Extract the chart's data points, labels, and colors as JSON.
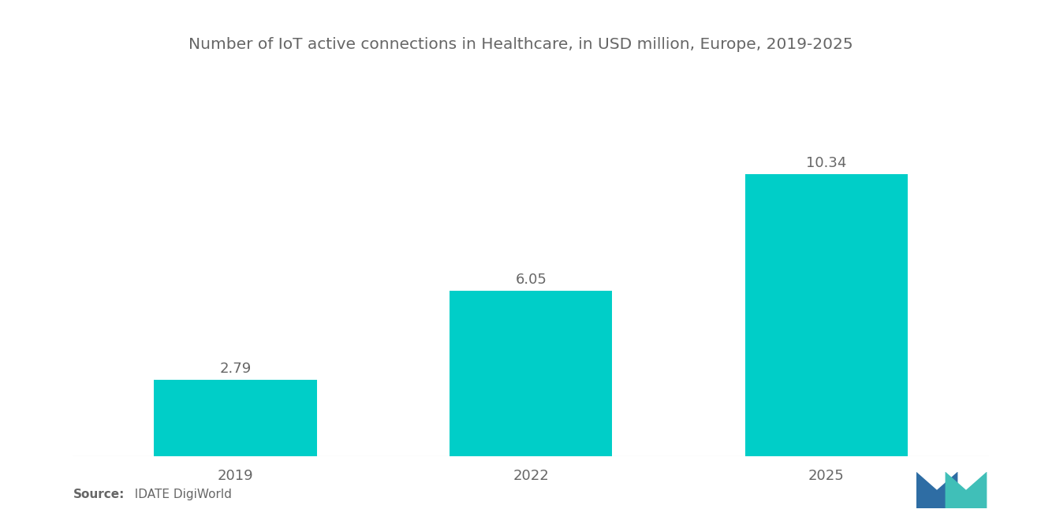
{
  "title": "Number of IoT active connections in Healthcare, in USD million, Europe, 2019-2025",
  "categories": [
    "2019",
    "2022",
    "2025"
  ],
  "values": [
    2.79,
    6.05,
    10.34
  ],
  "bar_color": "#00CEC8",
  "background_color": "#ffffff",
  "title_fontsize": 14.5,
  "label_fontsize": 13,
  "tick_fontsize": 13,
  "source_bold": "Source:",
  "source_normal": "  IDATE DigiWorld",
  "ylim": [
    0,
    12.5
  ],
  "bar_width": 0.55,
  "x_positions": [
    0,
    1,
    2
  ],
  "text_color": "#666666",
  "logo_colors": [
    "#2E6DA4",
    "#40BFB8"
  ]
}
